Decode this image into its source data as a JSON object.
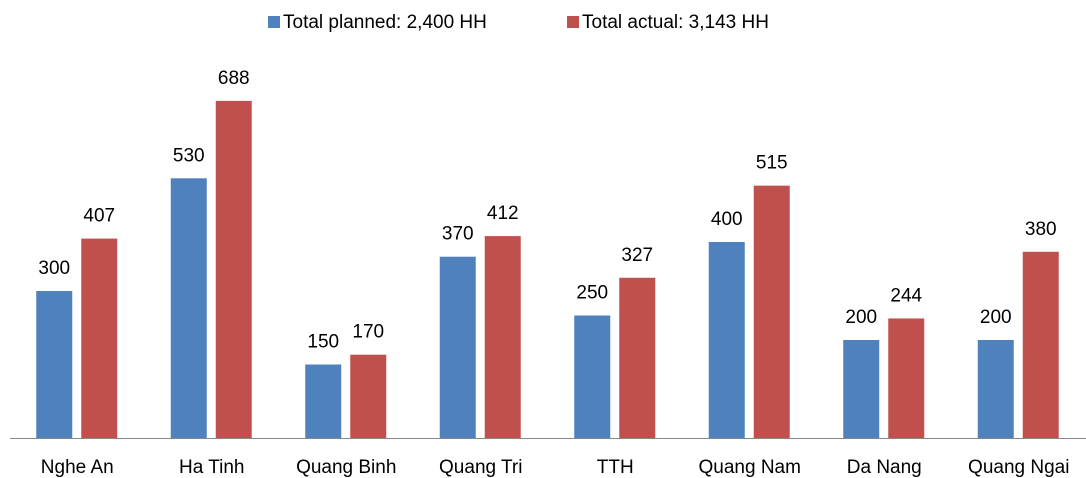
{
  "chart_data": {
    "type": "bar",
    "categories": [
      "Nghe An",
      "Ha Tinh",
      "Quang Binh",
      "Quang Tri",
      "TTH",
      "Quang Nam",
      "Da Nang",
      "Quang Ngai"
    ],
    "series": [
      {
        "name": "Total planned: 2,400 HH",
        "color": "#4f81bd",
        "values": [
          300,
          530,
          150,
          370,
          250,
          400,
          200,
          200
        ]
      },
      {
        "name": "Total actual: 3,143 HH",
        "color": "#c0504d",
        "values": [
          407,
          688,
          170,
          412,
          327,
          515,
          244,
          380
        ]
      }
    ],
    "legend": "top"
  }
}
